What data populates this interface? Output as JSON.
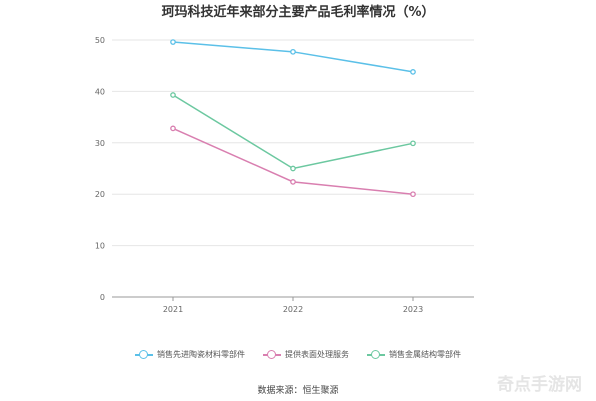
{
  "chart_data": {
    "type": "line",
    "title": "珂玛科技近年来部分主要产品毛利率情况（%）",
    "xlabel": "",
    "ylabel": "",
    "x": [
      "2021",
      "2022",
      "2023"
    ],
    "ylim": [
      0,
      50
    ],
    "yticks": [
      0,
      10,
      20,
      30,
      40,
      50
    ],
    "grid": true,
    "legend_position": "bottom",
    "series": [
      {
        "name": "销售先进陶瓷材料零部件",
        "color": "#5bc0e8",
        "values": [
          49.6,
          47.7,
          43.8
        ]
      },
      {
        "name": "提供表面处理服务",
        "color": "#d97fb0",
        "values": [
          32.8,
          22.4,
          20.0
        ]
      },
      {
        "name": "销售金属结构零部件",
        "color": "#6cc8a0",
        "values": [
          39.3,
          25.0,
          29.9
        ]
      }
    ]
  },
  "source_note": "数据来源：恒生聚源",
  "watermark": "奇点手游网"
}
